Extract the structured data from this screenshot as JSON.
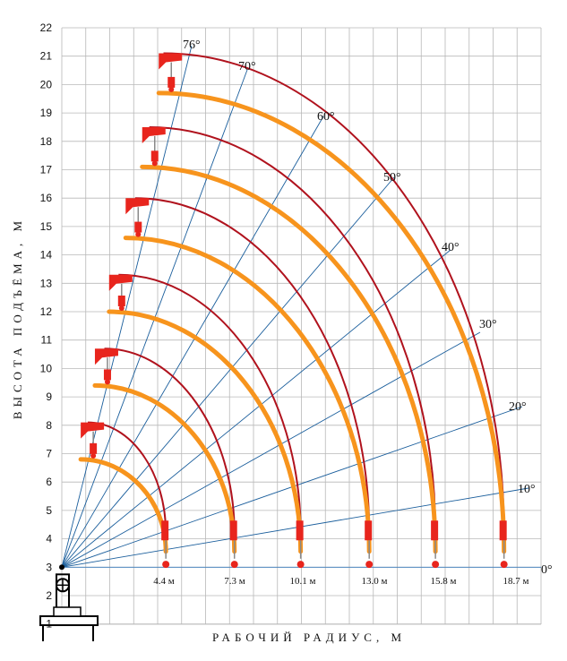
{
  "chart_data": {
    "type": "line",
    "xlabel": "РАБОЧИЙ РАДИУС, М",
    "ylabel": "ВЫСОТА ПОДЪЁМА, М",
    "ylim": [
      1,
      22
    ],
    "y_ticks": [
      "1",
      "2",
      "3",
      "4",
      "5",
      "6",
      "7",
      "8",
      "9",
      "10",
      "11",
      "12",
      "13",
      "14",
      "15",
      "16",
      "17",
      "18",
      "19",
      "20",
      "21",
      "22"
    ],
    "grid": true,
    "pivot_height": 3,
    "angle_labels": [
      "0°",
      "10°",
      "20°",
      "30°",
      "40°",
      "50°",
      "60°",
      "70°",
      "76°"
    ],
    "angles": [
      0,
      10,
      20,
      30,
      40,
      50,
      60,
      70,
      76
    ],
    "reach_labels": [
      "4.4 м",
      "7.3 м",
      "10.1 м",
      "13.0 м",
      "15.8 м",
      "18.7 м"
    ],
    "series": [
      {
        "boom_tip_radius": [
          4.4,
          1.1,
          0.8
        ],
        "boom_tip_height": [
          4.2,
          8.1,
          8.1
        ],
        "hook_radius": [
          4.4,
          0.8
        ],
        "hook_height": [
          3.3,
          6.8
        ]
      },
      {
        "boom_tip_radius": [
          7.3,
          1.8,
          1.4
        ],
        "boom_tip_height": [
          4.2,
          10.7,
          10.7
        ],
        "hook_radius": [
          7.3,
          1.4
        ],
        "hook_height": [
          3.3,
          9.4
        ]
      },
      {
        "boom_tip_radius": [
          10.1,
          2.4,
          2.0
        ],
        "boom_tip_height": [
          4.2,
          13.3,
          13.3
        ],
        "hook_radius": [
          10.1,
          2.0
        ],
        "hook_height": [
          3.3,
          12.0
        ]
      },
      {
        "boom_tip_radius": [
          13.0,
          3.1,
          2.7
        ],
        "boom_tip_height": [
          4.2,
          16.0,
          16.0
        ],
        "hook_radius": [
          13.0,
          2.7
        ],
        "hook_height": [
          3.3,
          14.6
        ]
      },
      {
        "boom_tip_radius": [
          15.8,
          3.7,
          3.4
        ],
        "boom_tip_height": [
          4.2,
          18.5,
          18.5
        ],
        "hook_radius": [
          15.8,
          3.4
        ],
        "hook_height": [
          3.3,
          17.1
        ]
      },
      {
        "boom_tip_radius": [
          18.7,
          4.3,
          4.1
        ],
        "boom_tip_height": [
          4.2,
          21.1,
          21.1
        ],
        "hook_radius": [
          18.7,
          4.1
        ],
        "hook_height": [
          3.3,
          19.7
        ]
      }
    ],
    "colors": {
      "boom_arc": "#b0121d",
      "hook_arc": "#f7941d",
      "angle_lines": "#1a5e9c",
      "grid": "#b8b8b8",
      "hook": "#e8251d"
    }
  }
}
